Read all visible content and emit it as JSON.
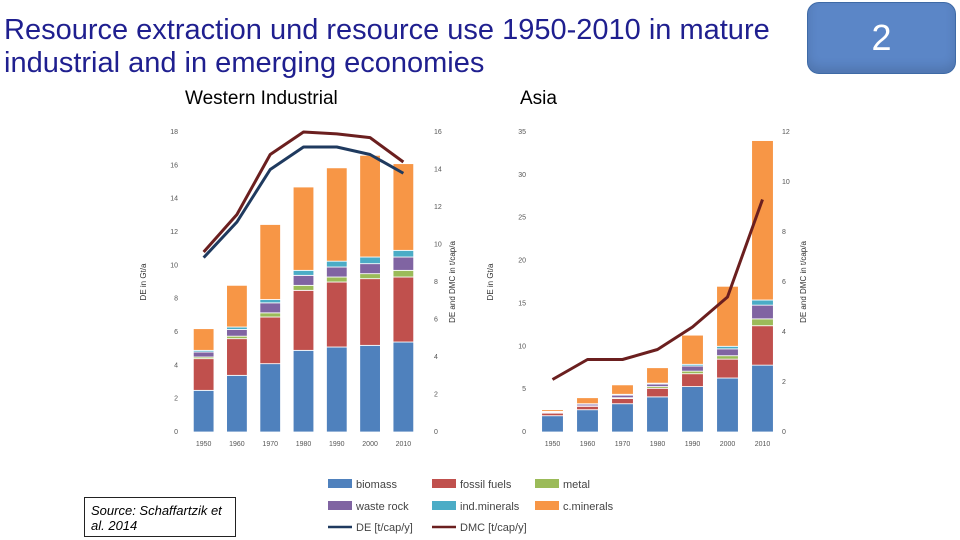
{
  "title": "Resource extraction und resource use 1950-2010 in mature industrial and in emerging economies",
  "slide_number": "2",
  "source": "Source: Schaffartzik et al. 2014",
  "legend": [
    {
      "key": "biomass",
      "label": "biomass",
      "color": "#4f81bd",
      "kind": "bar"
    },
    {
      "key": "fossil",
      "label": "fossil fuels",
      "color": "#c0504d",
      "kind": "bar"
    },
    {
      "key": "metal",
      "label": "metal",
      "color": "#9bbb59",
      "kind": "bar"
    },
    {
      "key": "waste",
      "label": "waste rock",
      "color": "#8064a2",
      "kind": "bar"
    },
    {
      "key": "indmin",
      "label": "ind.minerals",
      "color": "#4bacc6",
      "kind": "bar"
    },
    {
      "key": "cmin",
      "label": "c.minerals",
      "color": "#f79646",
      "kind": "bar"
    },
    {
      "key": "de",
      "label": "DE [t/cap/y]",
      "color": "#1f3a5f",
      "kind": "line"
    },
    {
      "key": "dmc",
      "label": "DMC [t/cap/y]",
      "color": "#6b1f1f",
      "kind": "line"
    }
  ],
  "chart_data": [
    {
      "type": "bar",
      "title": "Western Industrial",
      "ylabel": "DE in Gt/a",
      "y2label": "DE and DMC in t/cap/a",
      "categories": [
        "1950",
        "1960",
        "1970",
        "1980",
        "1990",
        "2000",
        "2010"
      ],
      "ylim": [
        0,
        18
      ],
      "yticks": [
        0,
        2,
        4,
        6,
        8,
        10,
        12,
        14,
        16,
        18
      ],
      "y2lim": [
        0,
        16
      ],
      "y2ticks": [
        0,
        2,
        4,
        6,
        8,
        10,
        12,
        14,
        16
      ],
      "series": [
        {
          "name": "biomass",
          "values": [
            2.5,
            3.4,
            4.1,
            4.9,
            5.1,
            5.2,
            5.4
          ]
        },
        {
          "name": "fossil fuels",
          "values": [
            1.9,
            2.2,
            2.8,
            3.6,
            3.9,
            4.0,
            3.9
          ]
        },
        {
          "name": "metal",
          "values": [
            0.1,
            0.15,
            0.25,
            0.3,
            0.3,
            0.3,
            0.4
          ]
        },
        {
          "name": "waste rock",
          "values": [
            0.3,
            0.4,
            0.6,
            0.6,
            0.6,
            0.6,
            0.8
          ]
        },
        {
          "name": "ind.minerals",
          "values": [
            0.1,
            0.15,
            0.2,
            0.3,
            0.35,
            0.4,
            0.4
          ]
        },
        {
          "name": "c.minerals",
          "values": [
            1.3,
            2.5,
            4.5,
            5.0,
            5.6,
            6.1,
            5.2
          ]
        }
      ],
      "lines": [
        {
          "name": "DE [t/cap/y]",
          "values": [
            9.3,
            11.2,
            14.0,
            15.2,
            15.2,
            14.8,
            13.8
          ]
        },
        {
          "name": "DMC [t/cap/y]",
          "values": [
            9.6,
            11.6,
            14.8,
            16.0,
            15.9,
            15.7,
            14.4
          ]
        }
      ]
    },
    {
      "type": "bar",
      "title": "Asia",
      "ylabel": "DE in Gt/a",
      "y2label": "DE and DMC in t/cap/a",
      "categories": [
        "1950",
        "1960",
        "1970",
        "1980",
        "1990",
        "2000",
        "2010"
      ],
      "ylim": [
        0,
        35
      ],
      "yticks": [
        0,
        5,
        10,
        15,
        20,
        25,
        30,
        35
      ],
      "y2lim": [
        0,
        12
      ],
      "y2ticks": [
        0,
        2,
        4,
        6,
        8,
        10,
        12
      ],
      "series": [
        {
          "name": "biomass",
          "values": [
            1.9,
            2.6,
            3.3,
            4.1,
            5.3,
            6.3,
            7.8
          ]
        },
        {
          "name": "fossil fuels",
          "values": [
            0.3,
            0.4,
            0.6,
            1.0,
            1.5,
            2.2,
            4.6
          ]
        },
        {
          "name": "metal",
          "values": [
            0.05,
            0.05,
            0.1,
            0.2,
            0.3,
            0.4,
            0.8
          ]
        },
        {
          "name": "waste rock",
          "values": [
            0.1,
            0.2,
            0.3,
            0.3,
            0.6,
            0.8,
            1.6
          ]
        },
        {
          "name": "ind.minerals",
          "values": [
            0.05,
            0.05,
            0.1,
            0.1,
            0.2,
            0.3,
            0.6
          ]
        },
        {
          "name": "c.minerals",
          "values": [
            0.2,
            0.7,
            1.1,
            1.8,
            3.4,
            7.0,
            18.6
          ]
        }
      ],
      "lines": [
        {
          "name": "DMC [t/cap/y]",
          "values": [
            2.1,
            2.9,
            2.9,
            3.3,
            4.2,
            5.4,
            9.3
          ]
        }
      ]
    }
  ]
}
